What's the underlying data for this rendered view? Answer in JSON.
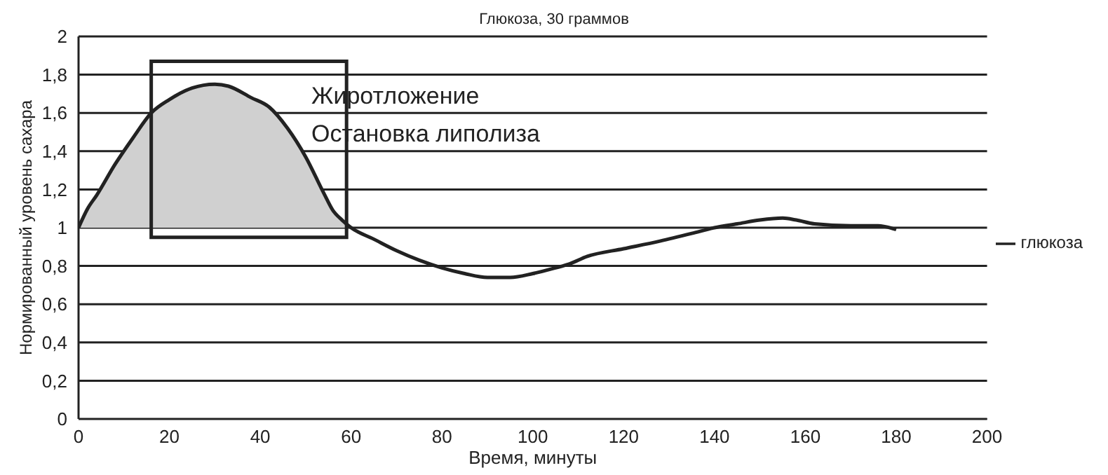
{
  "chart_data": {
    "type": "line",
    "title": "Глюкоза, 30 граммов",
    "xlabel": "Время, минуты",
    "ylabel": "Нормированный уровень сахара",
    "annotations": [
      "Жиротложение",
      "Остановка липолиза"
    ],
    "x": [
      0,
      2,
      4,
      8,
      12,
      16,
      20,
      25,
      30,
      33,
      38,
      42,
      46,
      50,
      54,
      56,
      58,
      60,
      65,
      70,
      75,
      80,
      85,
      90,
      95,
      100,
      105,
      108,
      112,
      120,
      128,
      135,
      140,
      145,
      150,
      155,
      158,
      162,
      170,
      176,
      180
    ],
    "series": [
      {
        "name": "глюкоза",
        "color": "#222222",
        "values": [
          1.0,
          1.1,
          1.17,
          1.33,
          1.47,
          1.6,
          1.67,
          1.73,
          1.75,
          1.74,
          1.68,
          1.63,
          1.52,
          1.37,
          1.18,
          1.09,
          1.04,
          1.0,
          0.94,
          0.88,
          0.83,
          0.79,
          0.76,
          0.74,
          0.74,
          0.76,
          0.79,
          0.81,
          0.85,
          0.89,
          0.93,
          0.97,
          1.0,
          1.02,
          1.04,
          1.05,
          1.04,
          1.02,
          1.01,
          1.01,
          0.99
        ],
        "lower": [
          1,
          1,
          1,
          1,
          1,
          1,
          1,
          1,
          1,
          1,
          1,
          1,
          1,
          1,
          1,
          1,
          1,
          1,
          null,
          null,
          null,
          null,
          null,
          null,
          null,
          null,
          null,
          null,
          null,
          null,
          null,
          null,
          null,
          null,
          null,
          null,
          null,
          null,
          null,
          null,
          null
        ],
        "upper": [
          1.0,
          1.1,
          1.17,
          1.33,
          1.47,
          1.6,
          1.67,
          1.73,
          1.75,
          1.74,
          1.68,
          1.63,
          1.52,
          1.37,
          1.18,
          1.09,
          1.04,
          1.0,
          null,
          null,
          null,
          null,
          null,
          null,
          null,
          null,
          null,
          null,
          null,
          null,
          null,
          null,
          null,
          null,
          null,
          null,
          null,
          null,
          null,
          null,
          null
        ]
      }
    ],
    "xlim": [
      0,
      200
    ],
    "xticks": [
      0,
      20,
      40,
      60,
      80,
      100,
      120,
      140,
      160,
      180,
      200
    ],
    "ylim": [
      0,
      2
    ],
    "yticks": [
      {
        "value": 0,
        "label": "0"
      },
      {
        "value": 0.2,
        "label": "0,2"
      },
      {
        "value": 0.4,
        "label": "0,4"
      },
      {
        "value": 0.6,
        "label": "0,6"
      },
      {
        "value": 0.8,
        "label": "0,8"
      },
      {
        "value": 1,
        "label": "1"
      },
      {
        "value": 1.2,
        "label": "1,2"
      },
      {
        "value": 1.4,
        "label": "1,4"
      },
      {
        "value": 1.6,
        "label": "1,6"
      },
      {
        "value": 1.8,
        "label": "1,8"
      },
      {
        "value": 2,
        "label": "2"
      }
    ],
    "grid": "y",
    "legend": "right",
    "marker": "none",
    "line_style": "solid"
  }
}
